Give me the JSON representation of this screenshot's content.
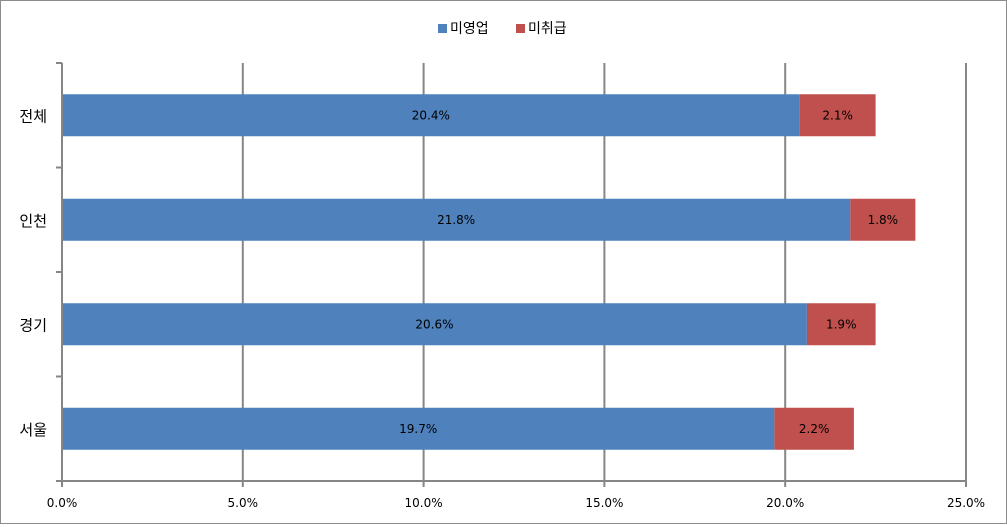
{
  "chart_data": {
    "type": "bar",
    "orientation": "horizontal",
    "stacked": true,
    "title": "",
    "xlabel": "",
    "ylabel": "",
    "categories": [
      "전체",
      "인천",
      "경기",
      "서울"
    ],
    "series": [
      {
        "name": "미영업",
        "color": "#4f81bd",
        "values": [
          20.4,
          21.8,
          20.6,
          19.7
        ],
        "labels": [
          "20.4%",
          "21.8%",
          "20.6%",
          "19.7%"
        ]
      },
      {
        "name": "미취급",
        "color": "#c0504d",
        "values": [
          2.1,
          1.8,
          1.9,
          2.2
        ],
        "labels": [
          "2.1%",
          "1.8%",
          "1.9%",
          "2.2%"
        ]
      }
    ],
    "xlim": [
      0,
      25
    ],
    "xticks": [
      0,
      5,
      10,
      15,
      20,
      25
    ],
    "xtick_labels": [
      "0.0%",
      "5.0%",
      "10.0%",
      "15.0%",
      "20.0%",
      "25.0%"
    ],
    "grid": "vertical",
    "legend_position": "top"
  }
}
